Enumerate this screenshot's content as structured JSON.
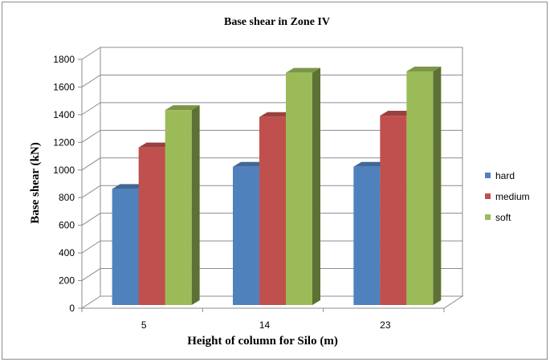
{
  "chart_data": {
    "type": "bar",
    "title": "Base shear in Zone  IV",
    "xlabel": "Height of column for Silo (m)",
    "ylabel": "Base shear (kN)",
    "categories": [
      "5",
      "14",
      "23"
    ],
    "ylim": [
      0,
      1800
    ],
    "yticks": [
      "0",
      "200",
      "400",
      "600",
      "800",
      "1000",
      "1200",
      "1400",
      "1600",
      "1800"
    ],
    "series": [
      {
        "name": "hard",
        "values": [
          840,
          1000,
          1000
        ],
        "color": "#4F81BD"
      },
      {
        "name": "medium",
        "values": [
          1140,
          1360,
          1370
        ],
        "color": "#C0504D"
      },
      {
        "name": "soft",
        "values": [
          1410,
          1680,
          1690
        ],
        "color": "#9BBB59"
      }
    ],
    "grid": true,
    "legend_position": "right",
    "style": "3d-clustered-column"
  }
}
